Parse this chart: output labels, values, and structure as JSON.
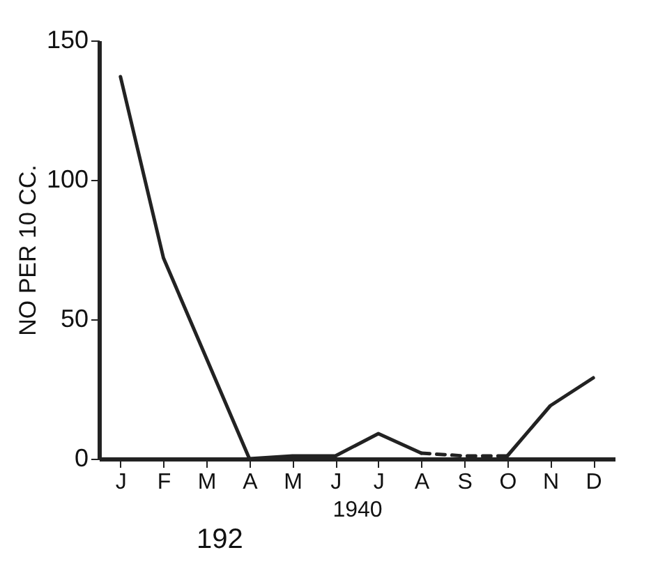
{
  "chart_data": {
    "type": "line",
    "xlabel": "1940",
    "ylabel": "NO PER 10 CC.",
    "annotations": [
      "192"
    ],
    "categories": [
      "J",
      "F",
      "M",
      "A",
      "M",
      "J",
      "J",
      "A",
      "S",
      "O",
      "N",
      "D"
    ],
    "ylim": [
      0,
      150
    ],
    "yticks": [
      0,
      50,
      100,
      150
    ],
    "grid": false,
    "marker": "none",
    "series": [
      {
        "color": "#222222",
        "line_style": "solid",
        "values": [
          137,
          72,
          36,
          0,
          1,
          1,
          9,
          2,
          null,
          null,
          null,
          null
        ]
      },
      {
        "color": "#222222",
        "line_style": "dashed",
        "values": [
          null,
          null,
          null,
          null,
          null,
          null,
          null,
          2,
          1,
          1,
          null,
          null
        ]
      },
      {
        "color": "#222222",
        "line_style": "solid",
        "values": [
          null,
          null,
          null,
          null,
          null,
          null,
          null,
          null,
          null,
          1,
          19,
          29
        ]
      }
    ]
  }
}
